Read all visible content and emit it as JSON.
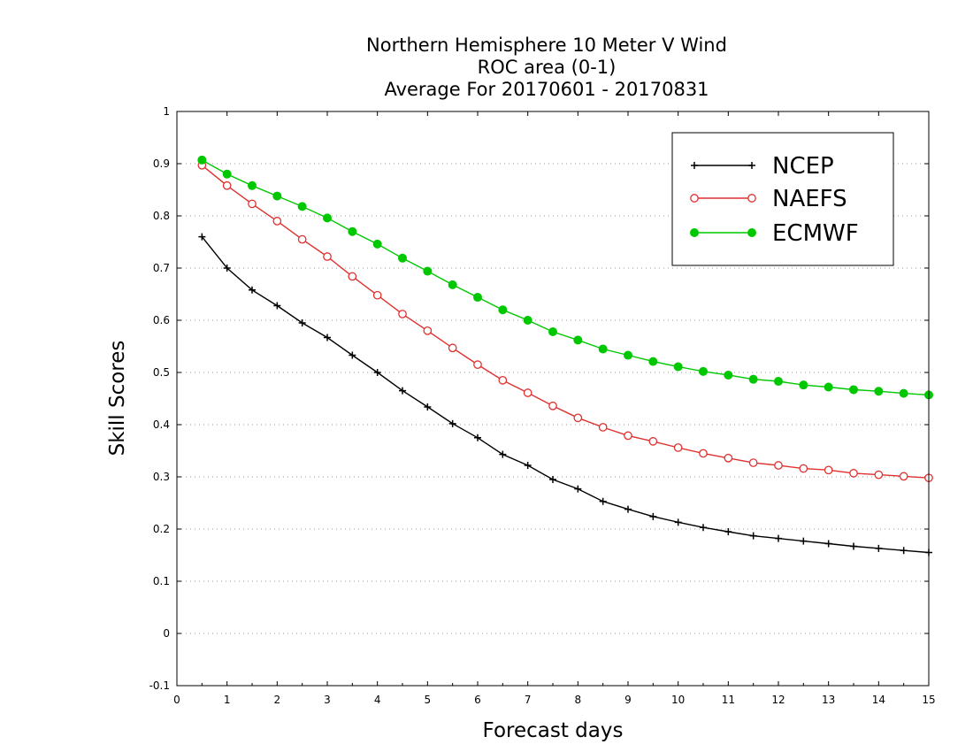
{
  "chart_data": {
    "type": "line",
    "title_lines": [
      "Northern Hemisphere 10 Meter V Wind",
      "ROC area (0-1)",
      "Average For 20170601 - 20170831"
    ],
    "xlabel": "Forecast days",
    "ylabel": "Skill Scores",
    "xlim": [
      0,
      15
    ],
    "ylim": [
      -0.1,
      1
    ],
    "xticks": [
      "0",
      "1",
      "2",
      "3",
      "4",
      "5",
      "6",
      "7",
      "8",
      "9",
      "10",
      "11",
      "12",
      "13",
      "14",
      "15"
    ],
    "yticks": [
      "-0.1",
      "0",
      "0.1",
      "0.2",
      "0.3",
      "0.4",
      "0.5",
      "0.6",
      "0.7",
      "0.8",
      "0.9",
      "1"
    ],
    "grid": "horizontal dotted",
    "legend_position": "top-right",
    "x": [
      0.5,
      1,
      1.5,
      2,
      2.5,
      3,
      3.5,
      4,
      4.5,
      5,
      5.5,
      6,
      6.5,
      7,
      7.5,
      8,
      8.5,
      9,
      9.5,
      10,
      10.5,
      11,
      11.5,
      12,
      12.5,
      13,
      13.5,
      14,
      14.5,
      15
    ],
    "series": [
      {
        "name": "NCEP",
        "color": "#000000",
        "marker": "plus",
        "values": [
          0.76,
          0.7,
          0.658,
          0.628,
          0.595,
          0.567,
          0.533,
          0.5,
          0.465,
          0.434,
          0.402,
          0.375,
          0.343,
          0.322,
          0.295,
          0.277,
          0.253,
          0.238,
          0.224,
          0.213,
          0.203,
          0.195,
          0.187,
          0.182,
          0.177,
          0.172,
          0.167,
          0.163,
          0.159,
          0.155
        ]
      },
      {
        "name": "NAEFS",
        "color": "#e03030",
        "marker": "open-circle",
        "values": [
          0.897,
          0.858,
          0.823,
          0.79,
          0.755,
          0.722,
          0.684,
          0.648,
          0.612,
          0.58,
          0.547,
          0.515,
          0.485,
          0.461,
          0.436,
          0.413,
          0.395,
          0.379,
          0.368,
          0.356,
          0.345,
          0.336,
          0.327,
          0.322,
          0.316,
          0.313,
          0.307,
          0.304,
          0.301,
          0.298
        ]
      },
      {
        "name": "ECMWF",
        "color": "#00c800",
        "marker": "filled-circle",
        "values": [
          0.907,
          0.88,
          0.858,
          0.838,
          0.818,
          0.796,
          0.77,
          0.746,
          0.719,
          0.694,
          0.668,
          0.644,
          0.62,
          0.6,
          0.578,
          0.562,
          0.545,
          0.533,
          0.521,
          0.511,
          0.502,
          0.495,
          0.487,
          0.483,
          0.476,
          0.472,
          0.467,
          0.464,
          0.46,
          0.457
        ]
      }
    ]
  }
}
